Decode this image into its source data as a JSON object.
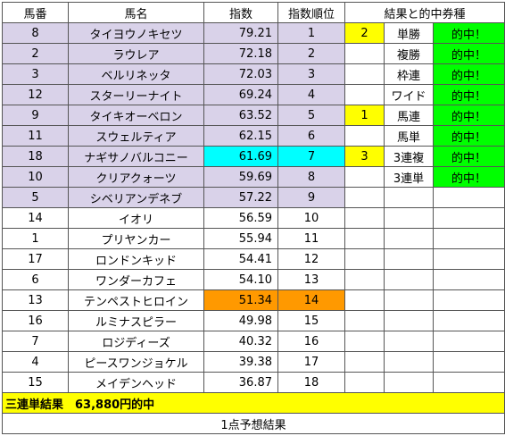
{
  "headers": [
    "馬番",
    "馬名",
    "指数",
    "指数順位",
    "結果と的中券種"
  ],
  "rows": [
    {
      "num": "8",
      "name": "タイヨウノキセツ",
      "index": "79.21",
      "rank": "1",
      "finish": "2",
      "bet": "単勝",
      "hit": "的中！"
    },
    {
      "num": "2",
      "name": "ラウレア",
      "index": "72.18",
      "rank": "2",
      "finish": "",
      "bet": "複勝",
      "hit": "的中！"
    },
    {
      "num": "3",
      "name": "ベルリネッタ",
      "index": "72.03",
      "rank": "3",
      "finish": "",
      "bet": "枠連",
      "hit": "的中！"
    },
    {
      "num": "12",
      "name": "スターリーナイト",
      "index": "69.24",
      "rank": "4",
      "finish": "",
      "bet": "ワイド",
      "hit": "的中！"
    },
    {
      "num": "9",
      "name": "タイキオーベロン",
      "index": "63.52",
      "rank": "5",
      "finish": "1",
      "bet": "馬連",
      "hit": "的中！"
    },
    {
      "num": "11",
      "name": "スウェルティア",
      "index": "62.15",
      "rank": "6",
      "finish": "",
      "bet": "馬単",
      "hit": "的中！"
    },
    {
      "num": "18",
      "name": "ナギサノバルコニー",
      "index": "61.69",
      "rank": "7",
      "finish": "3",
      "bet": "3連複",
      "hit": "的中！"
    },
    {
      "num": "10",
      "name": "クリアクォーツ",
      "index": "59.69",
      "rank": "8",
      "finish": "",
      "bet": "3連単",
      "hit": "的中！"
    },
    {
      "num": "5",
      "name": "シベリアンデネブ",
      "index": "57.22",
      "rank": "9",
      "finish": "",
      "bet": "",
      "hit": ""
    },
    {
      "num": "14",
      "name": "イオリ",
      "index": "56.59",
      "rank": "10",
      "finish": "",
      "bet": "",
      "hit": ""
    },
    {
      "num": "1",
      "name": "プリヤンカー",
      "index": "55.94",
      "rank": "11",
      "finish": "",
      "bet": "",
      "hit": ""
    },
    {
      "num": "17",
      "name": "ロンドンキッド",
      "index": "54.41",
      "rank": "12",
      "finish": "",
      "bet": "",
      "hit": ""
    },
    {
      "num": "6",
      "name": "ワンダーカフェ",
      "index": "54.10",
      "rank": "13",
      "finish": "",
      "bet": "",
      "hit": ""
    },
    {
      "num": "13",
      "name": "テンペストヒロイン",
      "index": "51.34",
      "rank": "14",
      "finish": "",
      "bet": "",
      "hit": ""
    },
    {
      "num": "16",
      "name": "ルミナスピラー",
      "index": "49.98",
      "rank": "15",
      "finish": "",
      "bet": "",
      "hit": ""
    },
    {
      "num": "7",
      "name": "ロジディーズ",
      "index": "40.32",
      "rank": "16",
      "finish": "",
      "bet": "",
      "hit": ""
    },
    {
      "num": "4",
      "name": "ピースワンジョケル",
      "index": "39.38",
      "rank": "17",
      "finish": "",
      "bet": "",
      "hit": ""
    },
    {
      "num": "15",
      "name": "メイデンヘッド",
      "index": "36.87",
      "rank": "18",
      "finish": "",
      "bet": "",
      "hit": ""
    }
  ],
  "summary": "三連単結果　63,880円的中",
  "footer": "1点予想結果",
  "colors": {
    "top_rows": "#d9d2e9",
    "finish_cell": "#ffff00",
    "hit_cell": "#00ff00",
    "highlight_cyan": "#00ffff",
    "highlight_orange": "#ff9900",
    "summary_bg": "#ffff00"
  }
}
